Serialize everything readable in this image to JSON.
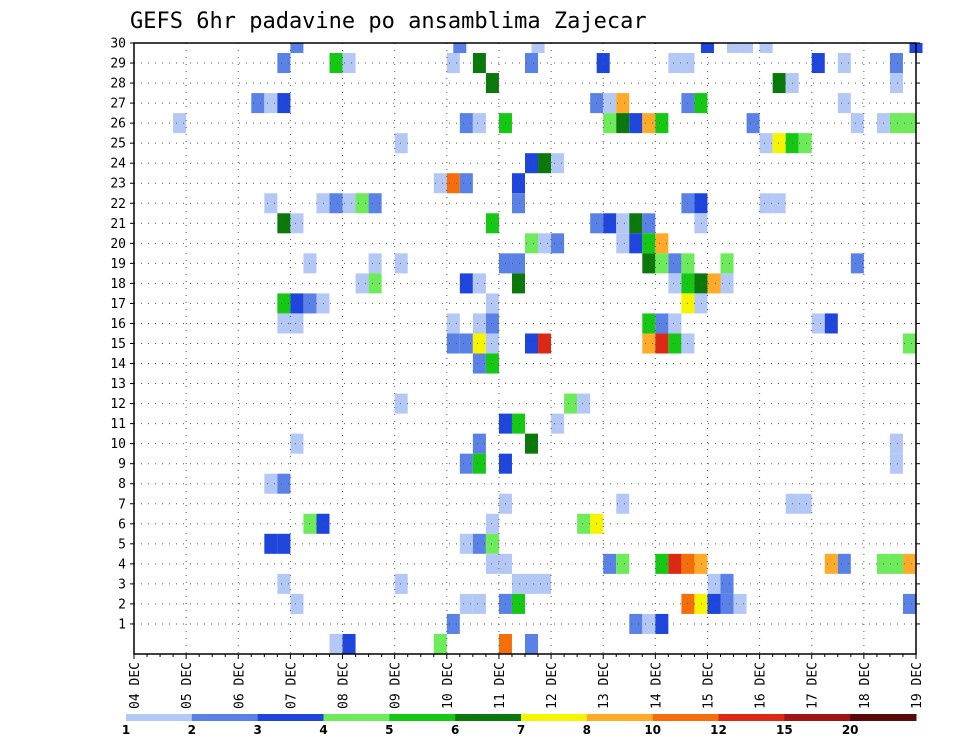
{
  "chart_data": {
    "type": "heatmap",
    "title": "GEFS 6hr padavine po ansamblima Zajecar",
    "x_tick_labels": [
      "04 DEC",
      "05 DEC",
      "06 DEC",
      "07 DEC",
      "08 DEC",
      "09 DEC",
      "10 DEC",
      "11 DEC",
      "12 DEC",
      "13 DEC",
      "14 DEC",
      "15 DEC",
      "16 DEC",
      "17 DEC",
      "18 DEC",
      "19 DEC"
    ],
    "x_range_days": [
      0,
      15
    ],
    "x_step": "6hr",
    "y_range": [
      0,
      30
    ],
    "y_ticks": [
      1,
      2,
      3,
      4,
      5,
      6,
      7,
      8,
      9,
      10,
      11,
      12,
      13,
      14,
      15,
      16,
      17,
      18,
      19,
      20,
      21,
      22,
      23,
      24,
      25,
      26,
      27,
      28,
      29,
      30
    ],
    "grid": true,
    "colorbar": {
      "labels": [
        "1",
        "2",
        "3",
        "4",
        "5",
        "6",
        "7",
        "8",
        "10",
        "12",
        "15",
        "20"
      ],
      "colors": [
        "#b4c8f5",
        "#5a82e6",
        "#1e46dc",
        "#6eeb5a",
        "#14c814",
        "#0a780a",
        "#f5f500",
        "#ffaa28",
        "#f56e0a",
        "#dc2814",
        "#a01414",
        "#5a0a0a"
      ]
    },
    "points": [
      [
        3.125,
        30,
        1
      ],
      [
        6.25,
        30,
        1
      ],
      [
        7.75,
        30,
        0
      ],
      [
        7.75,
        30,
        0
      ],
      [
        11,
        30,
        2
      ],
      [
        11.5,
        30,
        0
      ],
      [
        11.75,
        30,
        0
      ],
      [
        12.125,
        30,
        0
      ],
      [
        15,
        30,
        2
      ],
      [
        2.875,
        29,
        1
      ],
      [
        3.875,
        29,
        4
      ],
      [
        4.125,
        29,
        0
      ],
      [
        6.125,
        29,
        0
      ],
      [
        6.625,
        29,
        5
      ],
      [
        7.625,
        29,
        1
      ],
      [
        9,
        29,
        2
      ],
      [
        10.375,
        29,
        0
      ],
      [
        10.625,
        29,
        0
      ],
      [
        13.125,
        29,
        2
      ],
      [
        13.625,
        29,
        0
      ],
      [
        14.625,
        29,
        1
      ],
      [
        6.875,
        28,
        5
      ],
      [
        12.375,
        28,
        5
      ],
      [
        12.625,
        28,
        0
      ],
      [
        14.625,
        28,
        0
      ],
      [
        2.375,
        27,
        1
      ],
      [
        2.625,
        27,
        0
      ],
      [
        2.875,
        27,
        2
      ],
      [
        8.875,
        27,
        1
      ],
      [
        9.125,
        27,
        0
      ],
      [
        9.375,
        27,
        7
      ],
      [
        10.625,
        27,
        1
      ],
      [
        10.875,
        27,
        4
      ],
      [
        13.625,
        27,
        0
      ],
      [
        0.875,
        26,
        0
      ],
      [
        6.375,
        26,
        1
      ],
      [
        6.625,
        26,
        0
      ],
      [
        7.125,
        26,
        4
      ],
      [
        9.125,
        26,
        3
      ],
      [
        9.375,
        26,
        5
      ],
      [
        9.625,
        26,
        2
      ],
      [
        9.875,
        26,
        7
      ],
      [
        10.125,
        26,
        4
      ],
      [
        11.875,
        26,
        1
      ],
      [
        13.875,
        26,
        0
      ],
      [
        14.375,
        26,
        0
      ],
      [
        14.625,
        26,
        3
      ],
      [
        14.875,
        26,
        3
      ],
      [
        5.125,
        25,
        0
      ],
      [
        12.125,
        25,
        0
      ],
      [
        12.375,
        25,
        6
      ],
      [
        12.625,
        25,
        4
      ],
      [
        12.875,
        25,
        3
      ],
      [
        7.625,
        24,
        2
      ],
      [
        7.875,
        24,
        5
      ],
      [
        8.125,
        24,
        0
      ],
      [
        5.875,
        23,
        0
      ],
      [
        6.125,
        23,
        8
      ],
      [
        6.375,
        23,
        1
      ],
      [
        7.375,
        23,
        2
      ],
      [
        2.625,
        22,
        0
      ],
      [
        3.625,
        22,
        0
      ],
      [
        3.875,
        22,
        1
      ],
      [
        4.125,
        22,
        0
      ],
      [
        4.375,
        22,
        3
      ],
      [
        4.625,
        22,
        1
      ],
      [
        7.375,
        22,
        1
      ],
      [
        10.625,
        22,
        1
      ],
      [
        10.875,
        22,
        2
      ],
      [
        12.125,
        22,
        0
      ],
      [
        12.375,
        22,
        0
      ],
      [
        2.875,
        21,
        5
      ],
      [
        3.125,
        21,
        0
      ],
      [
        6.875,
        21,
        4
      ],
      [
        8.875,
        21,
        1
      ],
      [
        9.125,
        21,
        2
      ],
      [
        9.375,
        21,
        0
      ],
      [
        9.625,
        21,
        5
      ],
      [
        9.875,
        21,
        1
      ],
      [
        10.875,
        21,
        0
      ],
      [
        7.625,
        20,
        3
      ],
      [
        7.875,
        20,
        0
      ],
      [
        8.125,
        20,
        1
      ],
      [
        9.375,
        20,
        0
      ],
      [
        9.625,
        20,
        2
      ],
      [
        9.875,
        20,
        4
      ],
      [
        10.125,
        20,
        7
      ],
      [
        3.375,
        19,
        0
      ],
      [
        4.625,
        19,
        0
      ],
      [
        5.125,
        19,
        0
      ],
      [
        7.125,
        19,
        1
      ],
      [
        7.375,
        19,
        1
      ],
      [
        9.875,
        19,
        5
      ],
      [
        10.125,
        19,
        3
      ],
      [
        10.375,
        19,
        1
      ],
      [
        10.625,
        19,
        3
      ],
      [
        11.375,
        19,
        3
      ],
      [
        13.875,
        19,
        1
      ],
      [
        4.375,
        18,
        0
      ],
      [
        4.625,
        18,
        3
      ],
      [
        6.375,
        18,
        2
      ],
      [
        6.625,
        18,
        0
      ],
      [
        7.375,
        18,
        5
      ],
      [
        10.375,
        18,
        0
      ],
      [
        10.625,
        18,
        4
      ],
      [
        10.875,
        18,
        5
      ],
      [
        11.125,
        18,
        7
      ],
      [
        11.375,
        18,
        0
      ],
      [
        2.875,
        17,
        4
      ],
      [
        3.125,
        17,
        2
      ],
      [
        3.375,
        17,
        1
      ],
      [
        3.625,
        17,
        0
      ],
      [
        6.875,
        17,
        0
      ],
      [
        10.625,
        17,
        6
      ],
      [
        10.875,
        17,
        0
      ],
      [
        2.875,
        16,
        0
      ],
      [
        3.125,
        16,
        0
      ],
      [
        6.125,
        16,
        0
      ],
      [
        6.625,
        16,
        0
      ],
      [
        6.875,
        16,
        1
      ],
      [
        9.875,
        16,
        4
      ],
      [
        10.125,
        16,
        1
      ],
      [
        10.375,
        16,
        0
      ],
      [
        13.125,
        16,
        0
      ],
      [
        13.375,
        16,
        2
      ],
      [
        6.125,
        15,
        1
      ],
      [
        6.375,
        15,
        1
      ],
      [
        6.625,
        15,
        6
      ],
      [
        6.875,
        15,
        0
      ],
      [
        7.625,
        15,
        2
      ],
      [
        7.875,
        15,
        9
      ],
      [
        9.875,
        15,
        7
      ],
      [
        10.125,
        15,
        9
      ],
      [
        10.375,
        15,
        4
      ],
      [
        10.625,
        15,
        0
      ],
      [
        14.875,
        15,
        3
      ],
      [
        6.625,
        14,
        1
      ],
      [
        6.875,
        14,
        4
      ],
      [
        5.125,
        12,
        0
      ],
      [
        8.375,
        12,
        3
      ],
      [
        8.625,
        12,
        0
      ],
      [
        7.125,
        11,
        2
      ],
      [
        7.375,
        11,
        4
      ],
      [
        8.125,
        11,
        0
      ],
      [
        3.125,
        10,
        0
      ],
      [
        6.625,
        10,
        1
      ],
      [
        7.625,
        10,
        5
      ],
      [
        14.625,
        10,
        0
      ],
      [
        6.375,
        9,
        1
      ],
      [
        6.625,
        9,
        4
      ],
      [
        7.125,
        9,
        2
      ],
      [
        14.625,
        9,
        0
      ],
      [
        2.625,
        8,
        0
      ],
      [
        2.875,
        8,
        1
      ],
      [
        7.125,
        7,
        0
      ],
      [
        9.375,
        7,
        0
      ],
      [
        12.625,
        7,
        0
      ],
      [
        12.875,
        7,
        0
      ],
      [
        3.375,
        6,
        3
      ],
      [
        3.625,
        6,
        2
      ],
      [
        6.875,
        6,
        0
      ],
      [
        8.625,
        6,
        3
      ],
      [
        8.875,
        6,
        6
      ],
      [
        2.625,
        5,
        2
      ],
      [
        2.875,
        5,
        2
      ],
      [
        6.375,
        5,
        0
      ],
      [
        6.625,
        5,
        1
      ],
      [
        6.875,
        5,
        3
      ],
      [
        6.875,
        4,
        0
      ],
      [
        7.125,
        4,
        0
      ],
      [
        9.125,
        4,
        1
      ],
      [
        9.375,
        4,
        3
      ],
      [
        10.125,
        4,
        4
      ],
      [
        10.375,
        4,
        9
      ],
      [
        10.625,
        4,
        8
      ],
      [
        10.875,
        4,
        7
      ],
      [
        13.375,
        4,
        7
      ],
      [
        13.625,
        4,
        1
      ],
      [
        14.375,
        4,
        3
      ],
      [
        14.625,
        4,
        3
      ],
      [
        14.875,
        4,
        7
      ],
      [
        2.875,
        3,
        0
      ],
      [
        5.125,
        3,
        0
      ],
      [
        7.375,
        3,
        0
      ],
      [
        7.625,
        3,
        0
      ],
      [
        7.875,
        3,
        0
      ],
      [
        11.125,
        3,
        0
      ],
      [
        11.375,
        3,
        1
      ],
      [
        3.125,
        2,
        0
      ],
      [
        6.375,
        2,
        0
      ],
      [
        6.625,
        2,
        0
      ],
      [
        7.125,
        2,
        1
      ],
      [
        7.375,
        2,
        4
      ],
      [
        10.625,
        2,
        8
      ],
      [
        10.875,
        2,
        6
      ],
      [
        11.125,
        2,
        2
      ],
      [
        11.375,
        2,
        1
      ],
      [
        11.625,
        2,
        0
      ],
      [
        14.875,
        2,
        1
      ],
      [
        6.125,
        1,
        1
      ],
      [
        9.625,
        1,
        1
      ],
      [
        9.875,
        1,
        0
      ],
      [
        10.125,
        1,
        2
      ],
      [
        3.875,
        0,
        0
      ],
      [
        4.125,
        0,
        2
      ],
      [
        5.875,
        0,
        3
      ],
      [
        7.125,
        0,
        8
      ],
      [
        7.625,
        0,
        1
      ]
    ]
  }
}
